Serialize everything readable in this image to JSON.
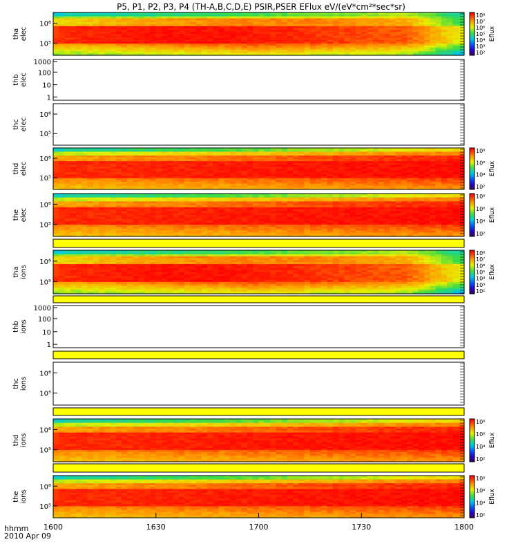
{
  "title": "P5, P1, P2, P3, P4 (TH-A,B,C,D,E) PSIR,PSER EFlux eV/(eV*cm²*sec*sr)",
  "time_axis": {
    "row_label": "hhmm",
    "date_label": "2010 Apr 09",
    "ticks": [
      "1600",
      "1630",
      "1700",
      "1730",
      "1800"
    ],
    "range_minutes": [
      0,
      120
    ]
  },
  "colorbar": {
    "label": "Eflux",
    "colormap": "rainbow-purple-blue-green-yellow-red"
  },
  "chart_data": [
    {
      "type": "heatmap",
      "probe": "tha",
      "species": "elec",
      "ylabel": [
        "tha",
        "elec"
      ],
      "yscale": "log",
      "yticks": [
        "10⁶",
        "10⁵"
      ],
      "has_data": true,
      "profile": "a",
      "colorbar_ticks": [
        "10⁸",
        "10⁷",
        "10⁶",
        "10⁵",
        "10⁴",
        "10³",
        "10²"
      ]
    },
    {
      "type": "heatmap",
      "probe": "thb",
      "species": "elec",
      "ylabel": [
        "thb",
        "elec"
      ],
      "yscale": "log",
      "yticks": [
        "1000",
        "100",
        "10",
        "1"
      ],
      "has_data": false
    },
    {
      "type": "heatmap",
      "probe": "thc",
      "species": "elec",
      "ylabel": [
        "thc",
        "elec"
      ],
      "yscale": "log",
      "yticks": [
        "10⁶",
        "10⁵"
      ],
      "has_data": false
    },
    {
      "type": "heatmap",
      "probe": "thd",
      "species": "elec",
      "ylabel": [
        "thd",
        "elec"
      ],
      "yscale": "log",
      "yticks": [
        "10⁶",
        "10⁵"
      ],
      "has_data": true,
      "profile": "d",
      "colorbar_ticks": [
        "10⁸",
        "10⁶",
        "10⁴",
        "10²"
      ]
    },
    {
      "type": "heatmap",
      "probe": "the",
      "species": "elec",
      "ylabel": [
        "the",
        "elec"
      ],
      "yscale": "log",
      "yticks": [
        "10⁶",
        "10⁵"
      ],
      "has_data": true,
      "profile": "d",
      "colorbar_ticks": [
        "10⁸",
        "10⁶",
        "10⁴",
        "10²"
      ]
    },
    {
      "type": "heatmap",
      "probe": "tha",
      "species": "ions",
      "ylabel": [
        "tha",
        "ions"
      ],
      "yscale": "log",
      "yticks": [
        "10⁶",
        "10⁵"
      ],
      "has_data": true,
      "profile": "a",
      "colorbar_ticks": [
        "10⁸",
        "10⁷",
        "10⁶",
        "10⁵",
        "10⁴",
        "10³",
        "10²"
      ]
    },
    {
      "type": "heatmap",
      "probe": "thb",
      "species": "ions",
      "ylabel": [
        "thb",
        "ions"
      ],
      "yscale": "log",
      "yticks": [
        "1000",
        "100",
        "10",
        "1"
      ],
      "has_data": false
    },
    {
      "type": "heatmap",
      "probe": "thc",
      "species": "ions",
      "ylabel": [
        "thc",
        "ions"
      ],
      "yscale": "log",
      "yticks": [
        "10⁶",
        "10⁵"
      ],
      "has_data": false
    },
    {
      "type": "heatmap",
      "probe": "thd",
      "species": "ions",
      "ylabel": [
        "thd",
        "ions"
      ],
      "yscale": "log",
      "yticks": [
        "10⁶",
        "10⁵"
      ],
      "has_data": true,
      "profile": "d",
      "colorbar_ticks": [
        "10⁸",
        "10⁶",
        "10⁴",
        "10²"
      ]
    },
    {
      "type": "heatmap",
      "probe": "the",
      "species": "ions",
      "ylabel": [
        "the",
        "ions"
      ],
      "yscale": "log",
      "yticks": [
        "10⁶",
        "10⁵"
      ],
      "has_data": true,
      "profile": "d",
      "colorbar_ticks": [
        "10⁸",
        "10⁶",
        "10⁴",
        "10²"
      ]
    }
  ]
}
